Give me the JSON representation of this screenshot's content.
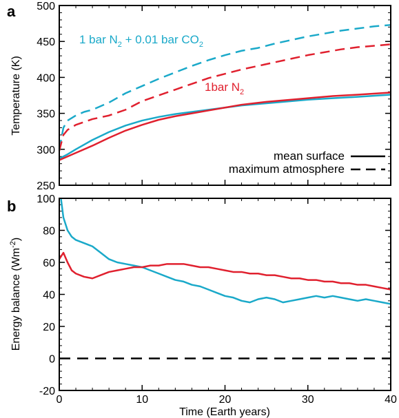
{
  "colors": {
    "cyan": "#1aa9c9",
    "red": "#e0202e",
    "black": "#000000"
  },
  "chart_data": [
    {
      "type": "line",
      "panel_label": "a",
      "xlim": [
        0,
        40
      ],
      "ylim": [
        250,
        500
      ],
      "xticks": [
        0,
        10,
        20,
        30,
        40
      ],
      "yticks": [
        250,
        300,
        350,
        400,
        450,
        500
      ],
      "xlabel": "",
      "ylabel": "Temperature (K)",
      "annotations": {
        "cyan_label_main": "1 bar N",
        "cyan_label_sub": "2",
        "cyan_label_rest": " + 0.01 bar CO",
        "cyan_label_sub2": "2",
        "red_label_main": "1bar N",
        "red_label_sub": "2"
      },
      "legend": {
        "position": "bottom-right",
        "entries": [
          {
            "label": "mean surface",
            "style": "solid"
          },
          {
            "label": "maximum atmosphere",
            "style": "dashed"
          }
        ]
      },
      "series": [
        {
          "color": "cyan",
          "style": "solid",
          "x": [
            0,
            1,
            2,
            4,
            6,
            8,
            10,
            12,
            14,
            16,
            18,
            20,
            22,
            25,
            28,
            30,
            33,
            36,
            40
          ],
          "y": [
            287,
            293,
            300,
            313,
            324,
            333,
            340,
            345,
            349,
            352,
            355,
            358,
            361,
            364,
            367,
            369,
            371,
            373,
            376
          ]
        },
        {
          "color": "red",
          "style": "solid",
          "x": [
            0,
            1,
            2,
            4,
            6,
            8,
            10,
            12,
            14,
            16,
            18,
            20,
            22,
            25,
            28,
            30,
            33,
            36,
            40
          ],
          "y": [
            285,
            290,
            295,
            305,
            316,
            326,
            334,
            341,
            346,
            350,
            354,
            358,
            362,
            366,
            369,
            371,
            374,
            376,
            379
          ]
        },
        {
          "color": "cyan",
          "style": "dashed",
          "x": [
            0,
            0.5,
            1,
            2,
            3,
            4,
            6,
            8,
            10,
            12,
            14,
            16,
            18,
            20,
            22,
            24,
            26,
            28,
            30,
            32,
            34,
            36,
            38,
            40
          ],
          "y": [
            300,
            330,
            340,
            347,
            352,
            355,
            365,
            378,
            388,
            398,
            407,
            416,
            424,
            431,
            437,
            441,
            447,
            452,
            457,
            461,
            465,
            468,
            471,
            473
          ]
        },
        {
          "color": "red",
          "style": "dashed",
          "x": [
            0,
            0.5,
            1,
            2,
            3,
            4,
            6,
            8,
            10,
            12,
            14,
            16,
            18,
            20,
            22,
            24,
            26,
            28,
            30,
            32,
            34,
            36,
            38,
            40
          ],
          "y": [
            298,
            320,
            327,
            334,
            338,
            342,
            347,
            355,
            367,
            375,
            383,
            391,
            399,
            405,
            411,
            416,
            421,
            426,
            431,
            435,
            439,
            442,
            444,
            446
          ]
        }
      ]
    },
    {
      "type": "line",
      "panel_label": "b",
      "xlim": [
        0,
        40
      ],
      "ylim": [
        -20,
        100
      ],
      "xticks": [
        0,
        10,
        20,
        30,
        40
      ],
      "yticks": [
        -20,
        0,
        20,
        40,
        60,
        80,
        100
      ],
      "xlabel": "Time (Earth years)",
      "ylabel_main": "Energy balance (Wm",
      "ylabel_sup": "-2",
      "ylabel_end": ")",
      "series": [
        {
          "color": "cyan",
          "style": "solid",
          "x": [
            0.2,
            0.5,
            1,
            1.5,
            2,
            3,
            4,
            5,
            6,
            7,
            8,
            9,
            10,
            11,
            12,
            13,
            14,
            15,
            16,
            17,
            18,
            19,
            20,
            21,
            22,
            23,
            24,
            25,
            26,
            27,
            28,
            29,
            30,
            31,
            32,
            33,
            34,
            35,
            36,
            37,
            38,
            39,
            40
          ],
          "y": [
            100,
            88,
            80,
            76,
            74,
            72,
            70,
            66,
            62,
            60,
            59,
            58,
            57,
            55,
            53,
            51,
            49,
            48,
            46,
            45,
            43,
            41,
            39,
            38,
            36,
            35,
            37,
            38,
            37,
            35,
            36,
            37,
            38,
            39,
            38,
            39,
            38,
            37,
            36,
            37,
            36,
            35,
            34
          ]
        },
        {
          "color": "red",
          "style": "solid",
          "x": [
            0,
            0.5,
            1,
            1.5,
            2,
            3,
            4,
            5,
            6,
            7,
            8,
            9,
            10,
            11,
            12,
            13,
            14,
            15,
            16,
            17,
            18,
            19,
            20,
            21,
            22,
            23,
            24,
            25,
            26,
            27,
            28,
            29,
            30,
            31,
            32,
            33,
            34,
            35,
            36,
            37,
            38,
            39,
            40
          ],
          "y": [
            62,
            66,
            60,
            55,
            53,
            51,
            50,
            52,
            54,
            55,
            56,
            57,
            57,
            58,
            58,
            59,
            59,
            59,
            58,
            57,
            57,
            56,
            55,
            54,
            54,
            53,
            53,
            52,
            52,
            51,
            50,
            50,
            49,
            49,
            48,
            48,
            47,
            47,
            46,
            46,
            45,
            44,
            43
          ]
        },
        {
          "color": "black",
          "style": "dashed",
          "x": [
            0,
            40
          ],
          "y": [
            0,
            0
          ]
        }
      ]
    }
  ]
}
